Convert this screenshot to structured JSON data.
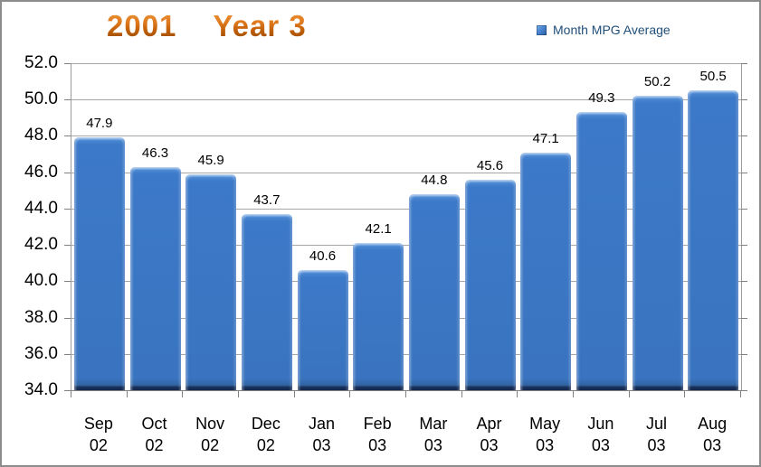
{
  "window": {
    "background": "#FFFFFF",
    "border_color": "#8C8C8C"
  },
  "title": {
    "text": "2001    Year 3",
    "color_top": "#F09A3E",
    "color_bottom": "#8F4503"
  },
  "legend": {
    "label": "Month MPG Average",
    "marker_color": "#3B76C4",
    "text_color": "#1F4E79",
    "position": "top-right"
  },
  "chart_data": {
    "type": "bar",
    "title": "2001    Year 3",
    "series": [
      {
        "name": "Month MPG Average",
        "values": [
          47.9,
          46.3,
          45.9,
          43.7,
          40.6,
          42.1,
          44.8,
          45.6,
          47.1,
          49.3,
          50.2,
          50.5
        ]
      }
    ],
    "categories": [
      {
        "month": "Sep",
        "year": "02"
      },
      {
        "month": "Oct",
        "year": "02"
      },
      {
        "month": "Nov",
        "year": "02"
      },
      {
        "month": "Dec",
        "year": "02"
      },
      {
        "month": "Jan",
        "year": "03"
      },
      {
        "month": "Feb",
        "year": "03"
      },
      {
        "month": "Mar",
        "year": "03"
      },
      {
        "month": "Apr",
        "year": "03"
      },
      {
        "month": "May",
        "year": "03"
      },
      {
        "month": "Jun",
        "year": "03"
      },
      {
        "month": "Jul",
        "year": "03"
      },
      {
        "month": "Aug",
        "year": "03"
      }
    ],
    "data_labels": [
      "47.9",
      "46.3",
      "45.9",
      "43.7",
      "40.6",
      "42.1",
      "44.8",
      "45.6",
      "47.1",
      "49.3",
      "50.2",
      "50.5"
    ],
    "xlabel": "",
    "ylabel": "",
    "ylim": [
      34.0,
      52.0
    ],
    "ytick_step": 2.0,
    "yticks": [
      "52.0",
      "50.0",
      "48.0",
      "46.0",
      "44.0",
      "42.0",
      "40.0",
      "38.0",
      "36.0",
      "34.0"
    ],
    "grid": true,
    "legend_position": "top-right",
    "bar_color": "#3B76C4",
    "bar_bevel_dark": "#1E3A66",
    "gridline_color": "#A6A6A6",
    "axis_color": "#808080",
    "label_color": "#000000"
  }
}
